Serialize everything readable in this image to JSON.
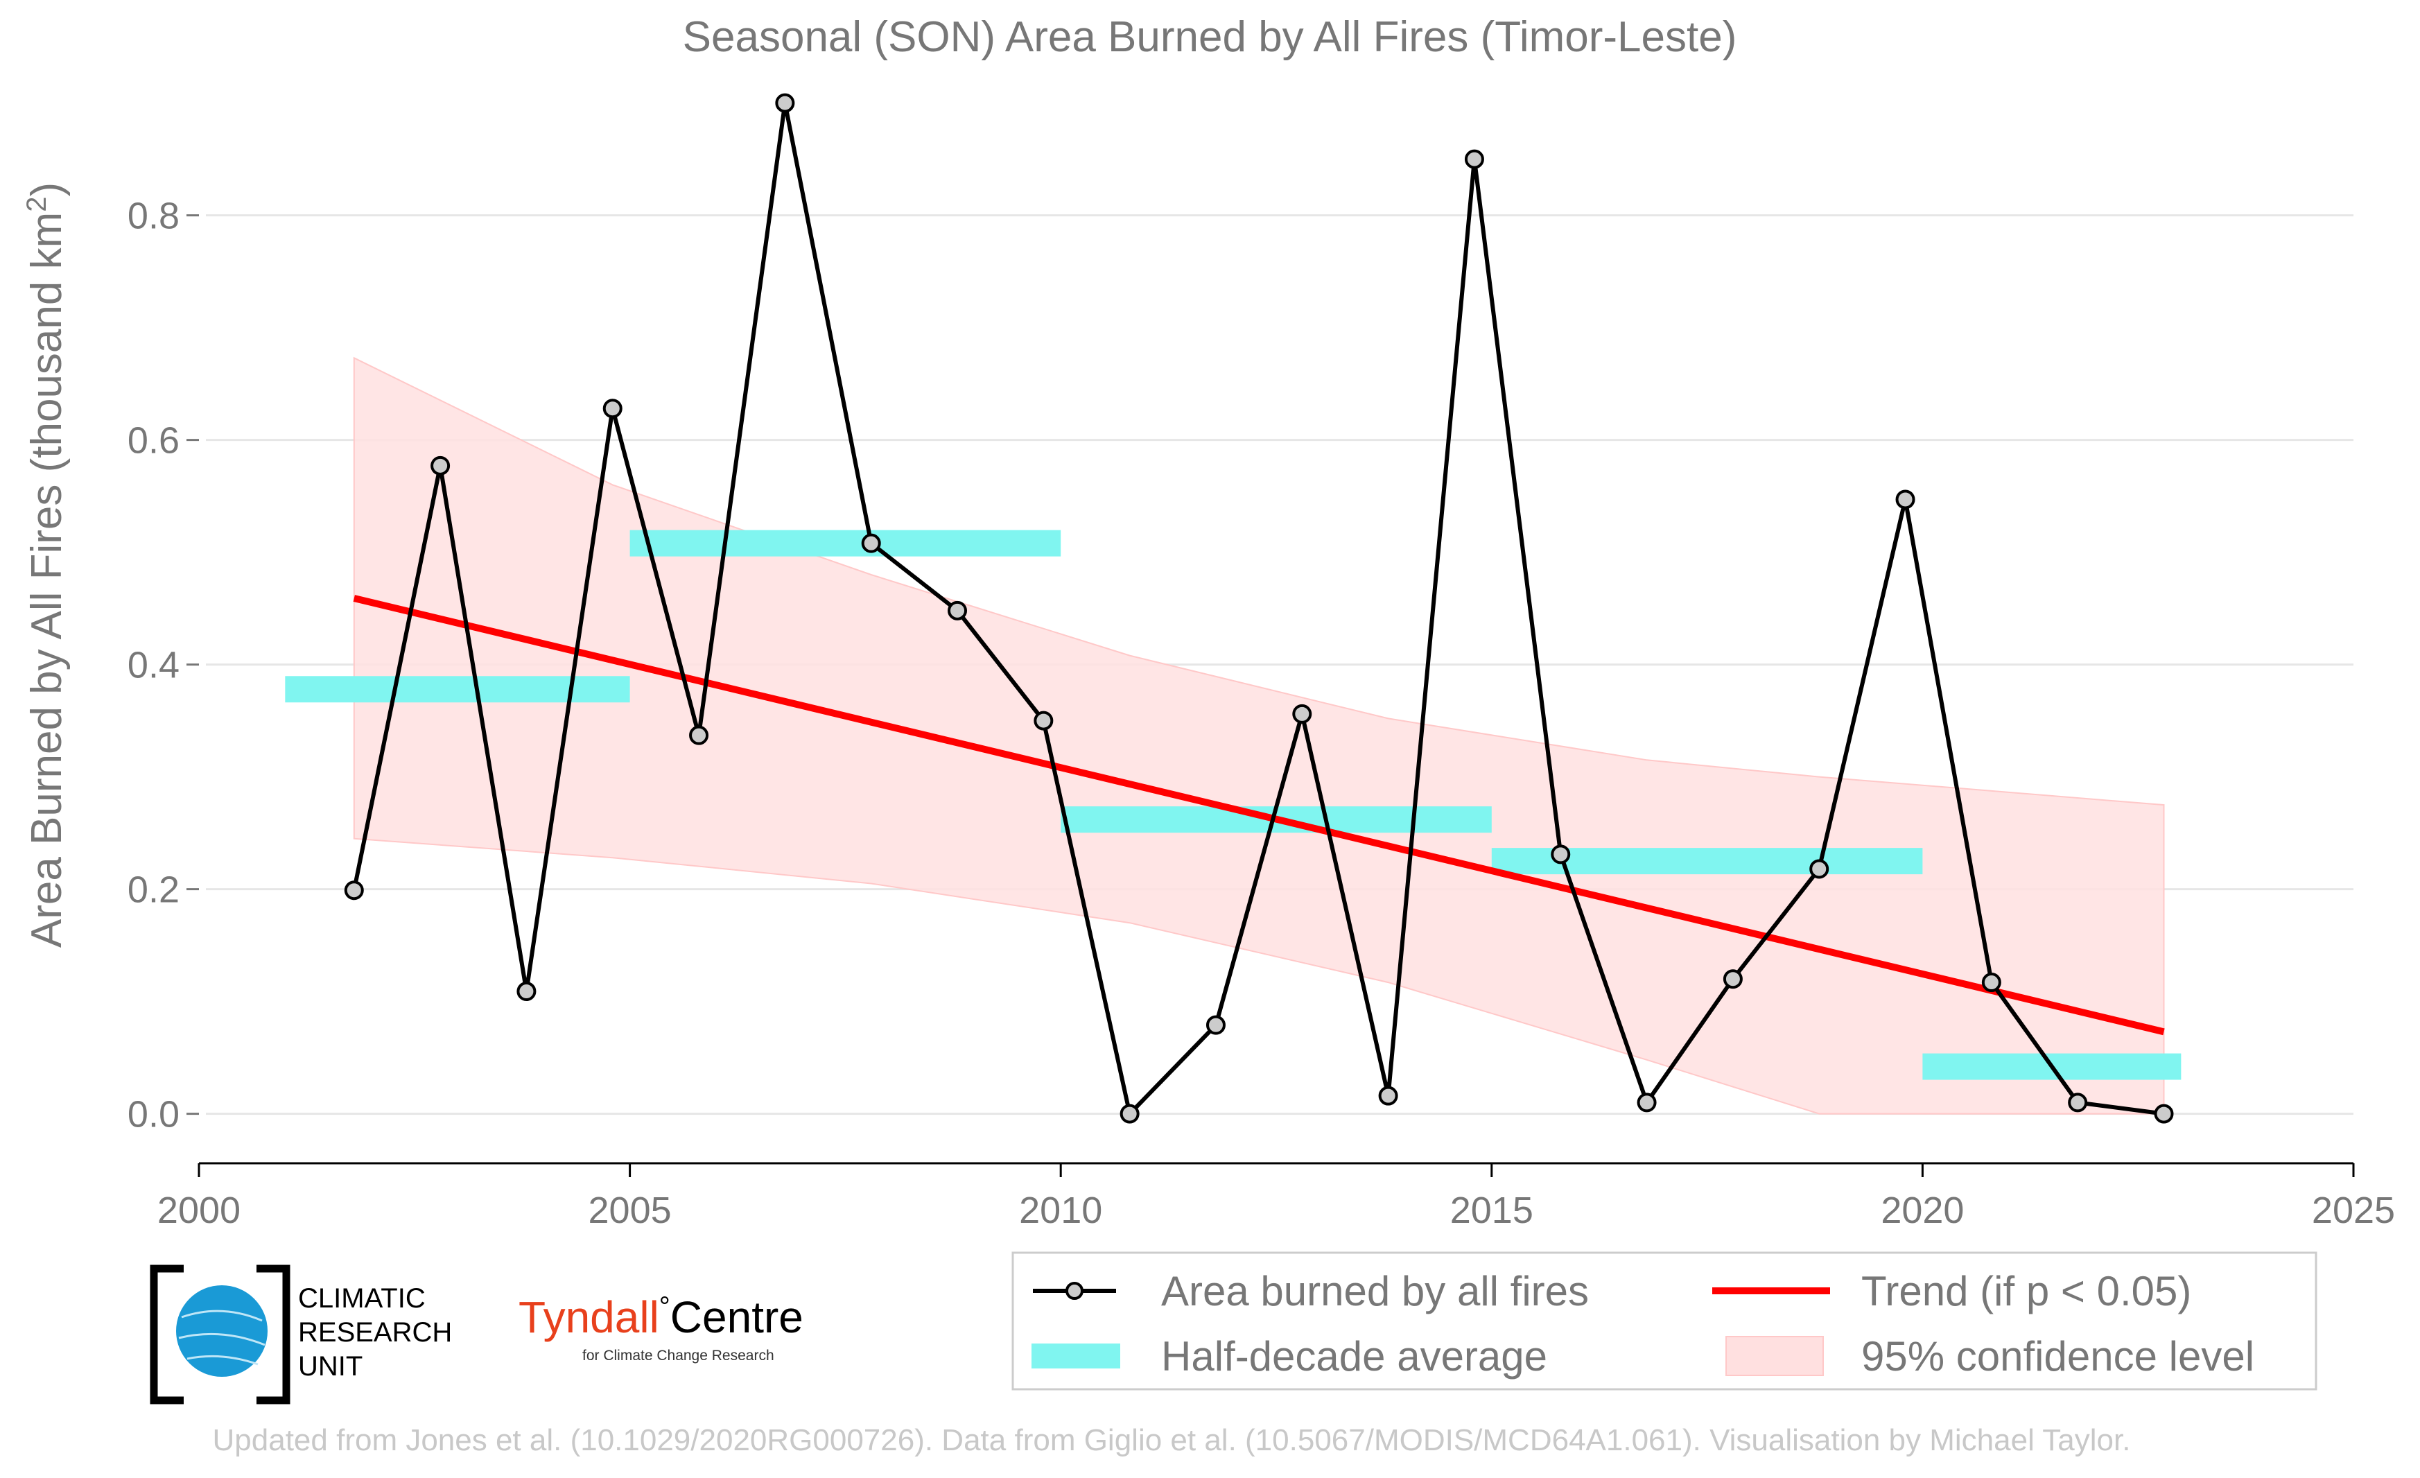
{
  "chart_data": {
    "type": "line",
    "title": "Seasonal (SON) Area Burned by All Fires (Timor-Leste)",
    "ylabel": "Area Burned by All Fires (thousand km",
    "ylabel_sup": "2",
    "ylabel_close": ")",
    "xlim": [
      2000,
      2025
    ],
    "ylim": [
      -0.07,
      0.93
    ],
    "xticks": [
      2000,
      2005,
      2010,
      2015,
      2020,
      2025
    ],
    "yticks": [
      0.0,
      0.2,
      0.4,
      0.6,
      0.8
    ],
    "ytick_labels": [
      "0.0",
      "0.2",
      "0.4",
      "0.6",
      "0.8"
    ],
    "grid": true,
    "legend_position": "bottom-right",
    "series": [
      {
        "name": "Area burned by all fires",
        "type": "line",
        "color": "#000000",
        "marker_fill": "#cccccc",
        "x": [
          2001.8,
          2002.8,
          2003.8,
          2004.8,
          2005.8,
          2006.8,
          2007.8,
          2008.8,
          2009.8,
          2010.8,
          2011.8,
          2012.8,
          2013.8,
          2014.8,
          2015.8,
          2016.8,
          2017.8,
          2018.8,
          2019.8,
          2020.8,
          2021.8,
          2022.8
        ],
        "values": [
          0.199,
          0.577,
          0.109,
          0.628,
          0.337,
          0.9,
          0.508,
          0.448,
          0.35,
          0.0,
          0.079,
          0.356,
          0.016,
          0.85,
          0.231,
          0.01,
          0.12,
          0.218,
          0.547,
          0.117,
          0.01,
          0.0
        ]
      },
      {
        "name": "Trend (if p < 0.05)",
        "type": "line",
        "color": "#ff0000",
        "x": [
          2001.8,
          2022.8
        ],
        "values": [
          0.459,
          0.073
        ]
      },
      {
        "name": "Half-decade average",
        "type": "step",
        "color": "#80f5f0",
        "segments": [
          {
            "x0": 2001.0,
            "x1": 2005.0,
            "value": 0.378
          },
          {
            "x0": 2005.0,
            "x1": 2010.0,
            "value": 0.508
          },
          {
            "x0": 2010.0,
            "x1": 2015.0,
            "value": 0.262
          },
          {
            "x0": 2015.0,
            "x1": 2020.0,
            "value": 0.225
          },
          {
            "x0": 2020.0,
            "x1": 2023.0,
            "value": 0.042
          }
        ]
      },
      {
        "name": "95% confidence level",
        "type": "band",
        "color": "#ffe0e0",
        "x": [
          2001.8,
          2004.8,
          2007.8,
          2010.8,
          2013.8,
          2016.8,
          2018.8,
          2022.8
        ],
        "upper": [
          0.673,
          0.56,
          0.48,
          0.408,
          0.352,
          0.315,
          0.3,
          0.275
        ],
        "lower": [
          0.245,
          0.228,
          0.205,
          0.17,
          0.117,
          0.048,
          0.0,
          0.0
        ]
      }
    ]
  },
  "logos": {
    "cru_line1": "CLIMATIC",
    "cru_line2": "RESEARCH",
    "cru_line3": "UNIT",
    "tyndall_name": "Tyndall",
    "tyndall_degree": "°",
    "tyndall_centre": "Centre",
    "tyndall_sub": "for Climate Change Research",
    "colors": {
      "cru_blue": "#1a9ad6",
      "tyndall_red": "#e8401c"
    }
  },
  "footer": {
    "credit": "Updated from Jones et al. (10.1029/2020RG000726). Data from Giglio et al. (10.5067/MODIS/MCD64A1.061). Visualisation by Michael Taylor."
  }
}
